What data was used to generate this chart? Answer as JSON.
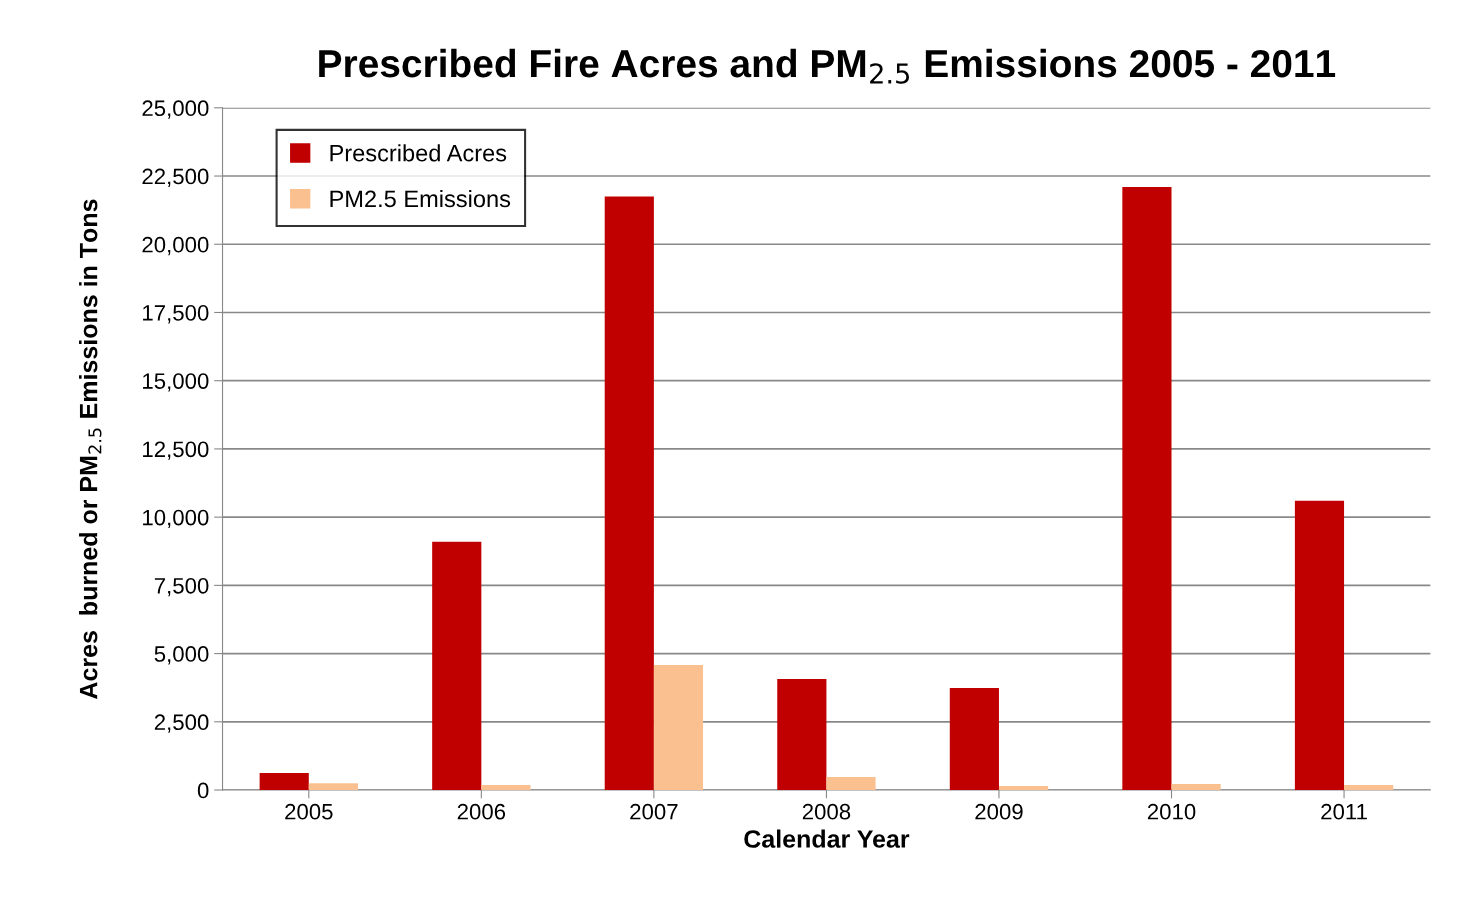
{
  "chart_data": {
    "type": "bar",
    "title": "Prescribed Fire Acres and PM$_{2.5}$ Emissions 2005 - 2011",
    "xlabel": "Calendar Year",
    "ylabel": "Acres  burned or PM$_{2.5}$ Emissions in Tons",
    "categories": [
      "2005",
      "2006",
      "2007",
      "2008",
      "2009",
      "2010",
      "2011"
    ],
    "series": [
      {
        "name": "Prescribed Acres",
        "color": "#c00000",
        "values": [
          620,
          9100,
          21750,
          4070,
          3740,
          22100,
          10600
        ]
      },
      {
        "name": "PM2.5 Emissions",
        "color": "#fac090",
        "values": [
          250,
          180,
          4580,
          480,
          150,
          220,
          180
        ]
      }
    ],
    "ylim": [
      0,
      25000
    ],
    "yticks": [
      0,
      {
        "value": 2500,
        "label": "2,500"
      },
      {
        "value": 5000,
        "label": "5,000"
      },
      {
        "value": 7500,
        "label": "7,500"
      },
      {
        "value": 10000,
        "label": "10,000"
      },
      {
        "value": 12500,
        "label": "12,500"
      },
      {
        "value": 15000,
        "label": "15,000"
      },
      {
        "value": 17500,
        "label": "17,500"
      },
      {
        "value": 20000,
        "label": "20,000"
      },
      {
        "value": 22500,
        "label": "22,500"
      },
      {
        "value": 25000,
        "label": "25,000"
      }
    ],
    "grid": "y",
    "legend": "top left"
  }
}
